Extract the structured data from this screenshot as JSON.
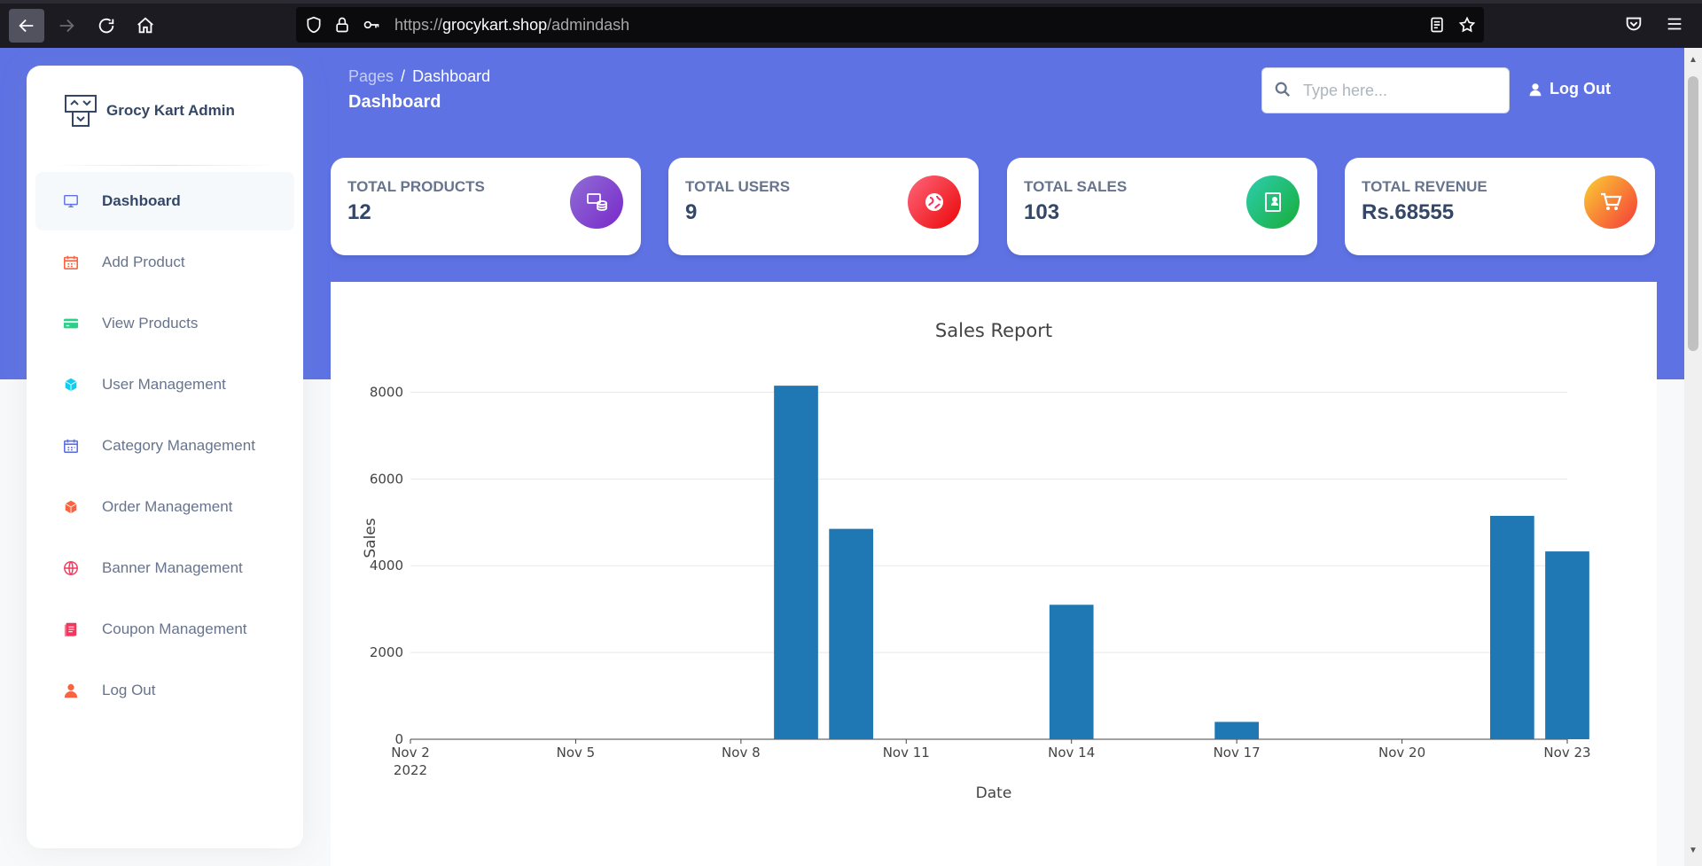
{
  "browser": {
    "url_prefix": "https://",
    "url_host": "grocykart.shop",
    "url_path": "/admindash"
  },
  "sidebar": {
    "brand": "Grocy Kart Admin",
    "items": [
      {
        "label": "Dashboard",
        "icon": "monitor-icon",
        "color": "#5e72e4",
        "active": true
      },
      {
        "label": "Add Product",
        "icon": "calendar-grid-icon",
        "color": "#fb6340",
        "active": false
      },
      {
        "label": "View Products",
        "icon": "credit-card-icon",
        "color": "#2dce89",
        "active": false
      },
      {
        "label": "User Management",
        "icon": "cube-icon",
        "color": "#11cdef",
        "active": false
      },
      {
        "label": "Category Management",
        "icon": "calendar-icon",
        "color": "#5e72e4",
        "active": false
      },
      {
        "label": "Order Management",
        "icon": "box-icon",
        "color": "#fb6340",
        "active": false
      },
      {
        "label": "Banner Management",
        "icon": "globe-icon",
        "color": "#f5365c",
        "active": false
      },
      {
        "label": "Coupon Management",
        "icon": "document-icon",
        "color": "#f5365c",
        "active": false
      },
      {
        "label": "Log Out",
        "icon": "user-icon",
        "color": "#fb6340",
        "active": false
      }
    ]
  },
  "header": {
    "breadcrumb_root": "Pages",
    "breadcrumb_separator": "/",
    "breadcrumb_current": "Dashboard",
    "title": "Dashboard",
    "search_placeholder": "Type here...",
    "logout_label": "Log Out"
  },
  "stats": [
    {
      "label": "TOTAL PRODUCTS",
      "value": "12",
      "icon": "database-icon",
      "color": "#7551e9"
    },
    {
      "label": "TOTAL USERS",
      "value": "9",
      "icon": "globe-icon",
      "color": "#f5365c"
    },
    {
      "label": "TOTAL SALES",
      "value": "103",
      "icon": "badge-icon",
      "color": "#2dce89"
    },
    {
      "label": "TOTAL REVENUE",
      "value": "Rs.68555",
      "icon": "cart-icon",
      "color": "#fb6340"
    }
  ],
  "chart_data": {
    "type": "bar",
    "title": "Sales Report",
    "xlabel": "Date",
    "ylabel": "Sales",
    "xlim": [
      "2022-11-02",
      "2022-11-23"
    ],
    "ylim": [
      0,
      8500
    ],
    "yticks": [
      0,
      2000,
      4000,
      6000,
      8000
    ],
    "x_tick_labels": [
      "Nov 2",
      "Nov 5",
      "Nov 8",
      "Nov 11",
      "Nov 14",
      "Nov 17",
      "Nov 20",
      "Nov 23"
    ],
    "x_tick_sublabel": "2022",
    "grid": true,
    "color": "#1f77b4",
    "x": [
      "2022-11-09",
      "2022-11-10",
      "2022-11-14",
      "2022-11-17",
      "2022-11-22",
      "2022-11-23"
    ],
    "values": [
      8150,
      4850,
      3100,
      400,
      5150,
      4330
    ]
  }
}
